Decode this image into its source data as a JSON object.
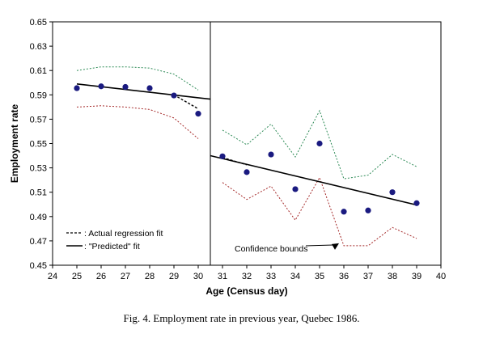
{
  "chart_data": {
    "type": "scatter",
    "xlabel": "Age (Census day)",
    "ylabel": "Employment rate",
    "xlim": [
      24,
      40
    ],
    "ylim": [
      0.45,
      0.65
    ],
    "x_ticks": [
      "24",
      "25",
      "26",
      "27",
      "28",
      "29",
      "30",
      "31",
      "32",
      "33",
      "34",
      "35",
      "36",
      "37",
      "38",
      "39",
      "40"
    ],
    "y_ticks": [
      "0.45",
      "0.47",
      "0.49",
      "0.51",
      "0.53",
      "0.55",
      "0.57",
      "0.59",
      "0.61",
      "0.63",
      "0.65"
    ],
    "cutoff_x": 30.5,
    "grid": false,
    "legend_position": "bottom-left",
    "series": [
      {
        "role": "observed",
        "x": [
          25,
          26,
          27,
          28,
          29,
          30,
          31,
          32,
          33,
          34,
          35,
          36,
          37,
          38,
          39
        ],
        "y": [
          0.5955,
          0.597,
          0.5965,
          0.5955,
          0.5895,
          0.5745,
          0.5395,
          0.5265,
          0.541,
          0.5125,
          0.55,
          0.494,
          0.495,
          0.51,
          0.501
        ],
        "color": "#1a1a80"
      },
      {
        "role": "upper-bound-left",
        "x": [
          25,
          26,
          27,
          28,
          29,
          30
        ],
        "y": [
          0.61,
          0.613,
          0.613,
          0.612,
          0.607,
          0.594
        ],
        "color": "#2e8b57"
      },
      {
        "role": "lower-bound-left",
        "x": [
          25,
          26,
          27,
          28,
          29,
          30
        ],
        "y": [
          0.58,
          0.581,
          0.58,
          0.578,
          0.571,
          0.554
        ],
        "color": "#a52a2a"
      },
      {
        "role": "upper-bound-right",
        "x": [
          31,
          32,
          33,
          34,
          35,
          36,
          37,
          38,
          39
        ],
        "y": [
          0.561,
          0.549,
          0.566,
          0.539,
          0.577,
          0.521,
          0.524,
          0.541,
          0.531
        ],
        "color": "#2e8b57"
      },
      {
        "role": "lower-bound-right",
        "x": [
          31,
          32,
          33,
          34,
          35,
          36,
          37,
          38,
          39
        ],
        "y": [
          0.518,
          0.504,
          0.515,
          0.487,
          0.522,
          0.466,
          0.466,
          0.481,
          0.472
        ],
        "color": "#a52a2a"
      },
      {
        "role": "predicted-fit-left",
        "x": [
          25,
          30.5
        ],
        "y": [
          0.599,
          0.5865
        ],
        "color": "#000000"
      },
      {
        "role": "predicted-fit-right",
        "x": [
          30.5,
          39
        ],
        "y": [
          0.54,
          0.4995
        ],
        "color": "#000000"
      },
      {
        "role": "actual-fit-left-tail",
        "x": [
          29,
          30
        ],
        "y": [
          0.59,
          0.5785
        ],
        "color": "#000000"
      },
      {
        "role": "actual-fit-right-start",
        "x": [
          31,
          32
        ],
        "y": [
          0.5385,
          0.5325
        ],
        "color": "#000000"
      }
    ],
    "legend": [
      {
        "label": "- - - : Actual regression fit",
        "style": "dashed"
      },
      {
        "label": "—— : \"Predicted\" fit",
        "style": "solid"
      }
    ],
    "annotation": {
      "text": "Confidence bounds",
      "points_to_x": 35.8,
      "points_to_y": 0.468
    }
  },
  "caption": "Fig. 4.  Employment rate in previous year, Quebec 1986."
}
